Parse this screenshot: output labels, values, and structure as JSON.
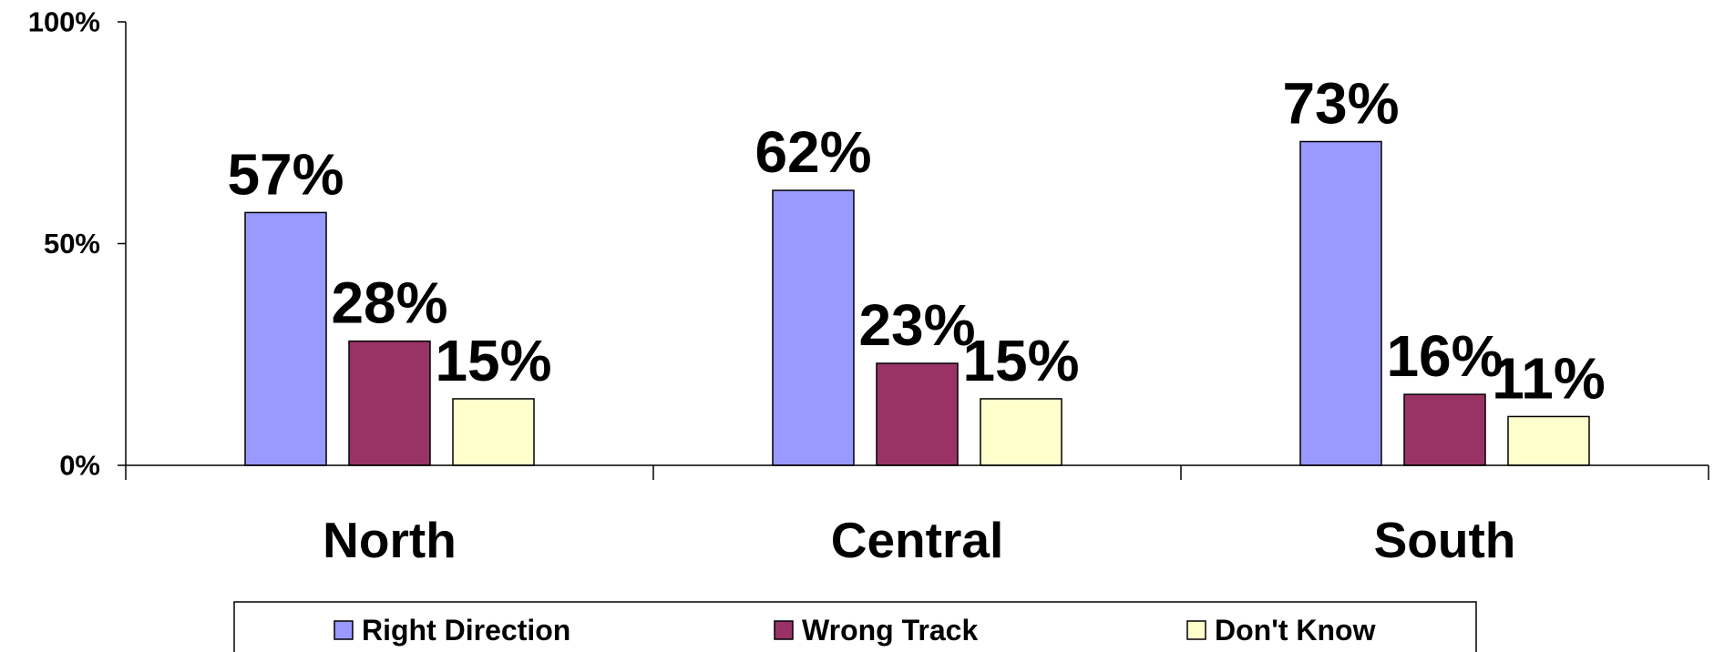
{
  "chart_data": {
    "type": "bar",
    "categories": [
      "North",
      "Central",
      "South"
    ],
    "series": [
      {
        "name": "Right Direction",
        "values": [
          57,
          62,
          73
        ],
        "labels": [
          "57%",
          "62%",
          "73%"
        ],
        "color": "#9999ff"
      },
      {
        "name": "Wrong Track",
        "values": [
          28,
          23,
          16
        ],
        "labels": [
          "28%",
          "23%",
          "16%"
        ],
        "color": "#993366"
      },
      {
        "name": "Don't Know",
        "values": [
          15,
          15,
          11
        ],
        "labels": [
          "15%",
          "15%",
          "11%"
        ],
        "color": "#ffffcc"
      }
    ],
    "yticks": [
      {
        "value": 0,
        "label": "0%"
      },
      {
        "value": 50,
        "label": "50%"
      },
      {
        "value": 100,
        "label": "100%"
      }
    ],
    "ylim": [
      0,
      100
    ],
    "grid": false,
    "legend": "bottom"
  }
}
